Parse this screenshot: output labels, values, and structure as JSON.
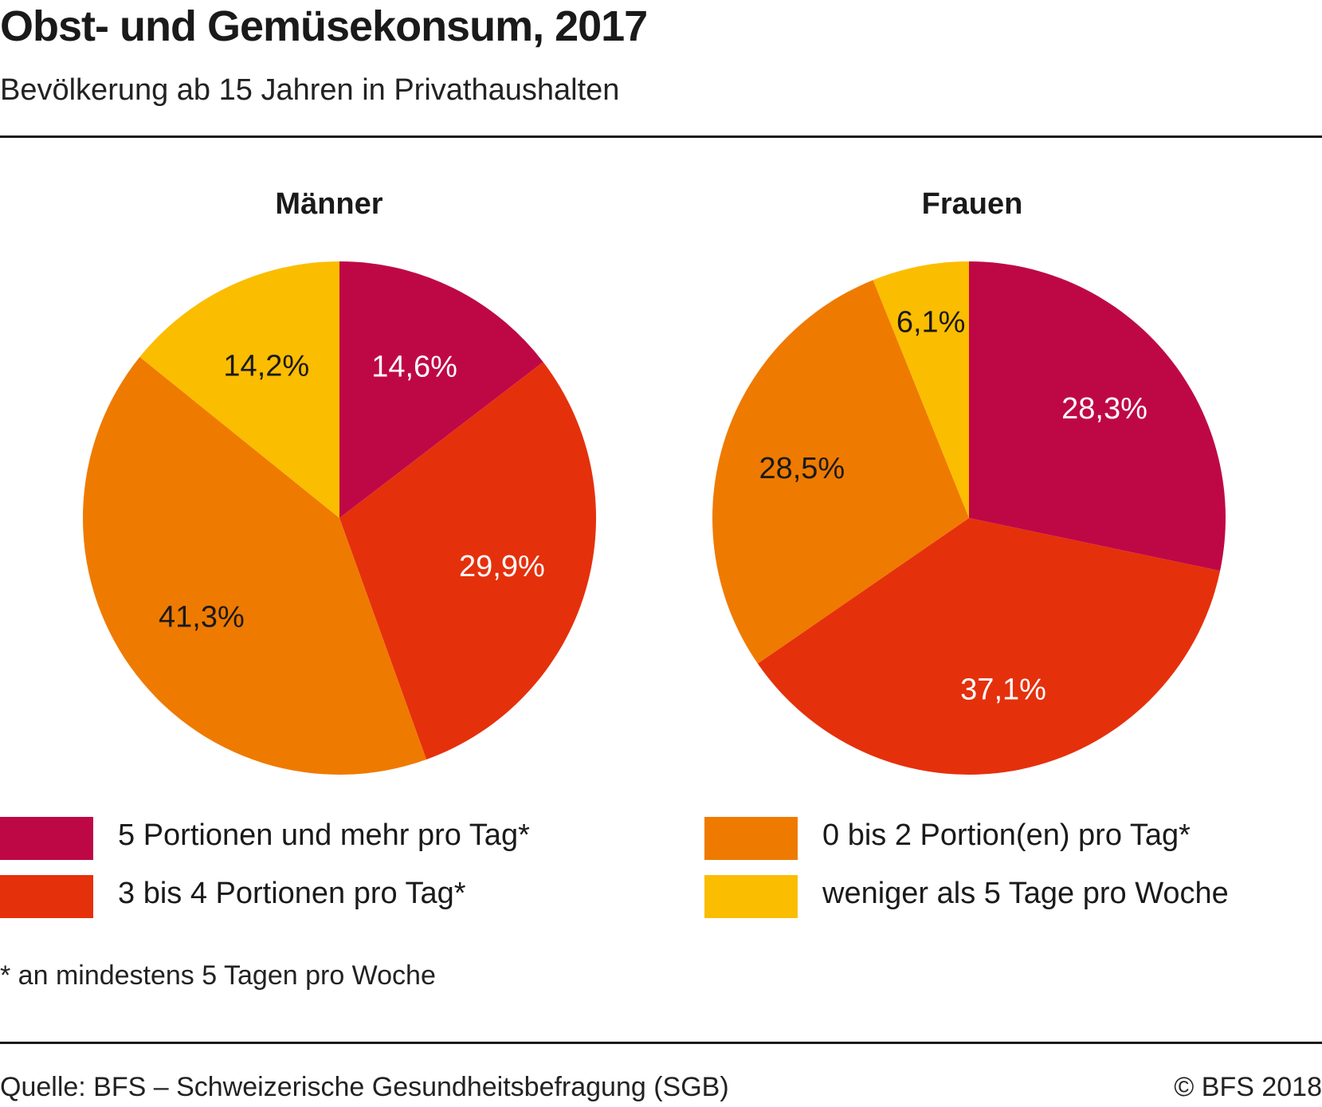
{
  "header": {
    "title": "Obst- und Gemüsekonsum, 2017",
    "subtitle": "Bevölkerung ab 15 Jahren in Privathaushalten"
  },
  "chart_data": [
    {
      "type": "pie",
      "title": "Männer",
      "categories": [
        "5 Portionen und mehr pro Tag*",
        "3 bis 4 Portionen pro Tag*",
        "0 bis 2 Portion(en) pro Tag*",
        "weniger als 5 Tage pro Woche"
      ],
      "values": [
        14.6,
        29.9,
        41.3,
        14.2
      ],
      "labels": [
        "14,6%",
        "29,9%",
        "41,3%",
        "14,2%"
      ],
      "start": "12 o'clock",
      "direction": "clockwise"
    },
    {
      "type": "pie",
      "title": "Frauen",
      "categories": [
        "5 Portionen und mehr pro Tag*",
        "3 bis 4 Portionen pro Tag*",
        "0 bis 2 Portion(en) pro Tag*",
        "weniger als 5 Tage pro Woche"
      ],
      "values": [
        28.3,
        37.1,
        28.5,
        6.1
      ],
      "labels": [
        "28,3%",
        "37,1%",
        "28,5%",
        "6,1%"
      ],
      "start": "12 o'clock",
      "direction": "clockwise"
    }
  ],
  "legend": {
    "placement": "bottom",
    "items": [
      {
        "label": "5 Portionen und mehr pro Tag*",
        "color": "#BE0846"
      },
      {
        "label": "3 bis 4 Portionen pro Tag*",
        "color": "#E5300C"
      },
      {
        "label": "0 bis 2 Portion(en) pro Tag*",
        "color": "#EF7A00"
      },
      {
        "label": "weniger als 5 Tage pro Woche",
        "color": "#FBBD00"
      }
    ]
  },
  "label_colors": [
    "#ffffff",
    "#ffffff",
    "#1a1a1a",
    "#1a1a1a"
  ],
  "footnote": "* an mindestens 5 Tagen pro Woche",
  "footer": {
    "source": "Quelle: BFS – Schweizerische Gesundheitsbefragung (SGB)",
    "copyright": "© BFS 2018"
  }
}
